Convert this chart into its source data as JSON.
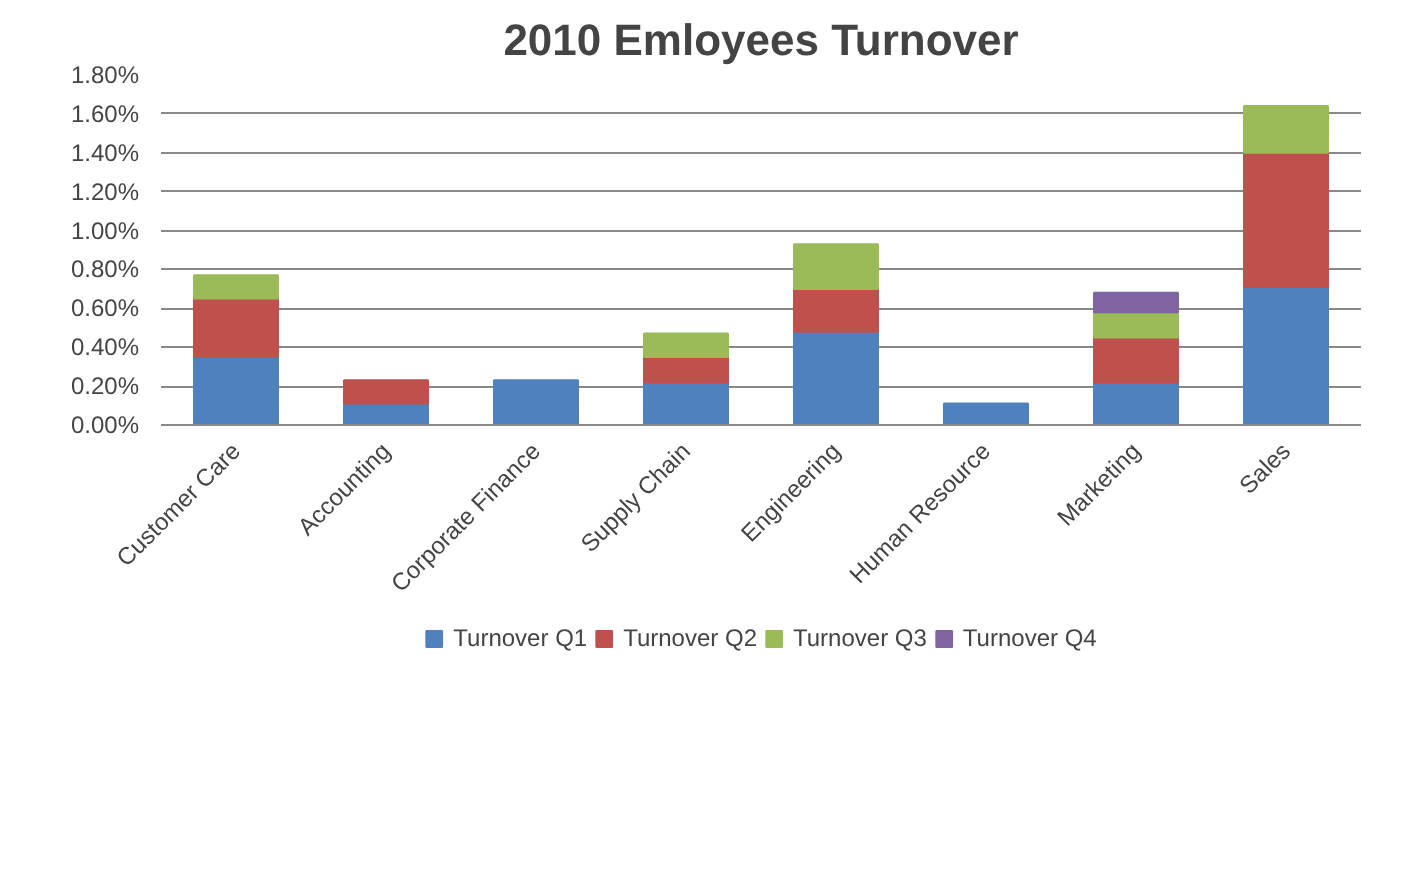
{
  "chart_data": {
    "type": "bar",
    "title": "2010 Emloyees Turnover",
    "stacked": true,
    "categories": [
      "Customer Care",
      "Accounting",
      "Corporate Finance",
      "Supply Chain",
      "Engineering",
      "Human Resource",
      "Marketing",
      "Sales"
    ],
    "series": [
      {
        "name": "Turnover Q1",
        "color": "#4f81bd",
        "values": [
          0.35,
          0.11,
          0.23,
          0.22,
          0.48,
          0.11,
          0.22,
          0.71
        ]
      },
      {
        "name": "Turnover Q2",
        "color": "#c0504d",
        "values": [
          0.3,
          0.12,
          null,
          0.13,
          0.22,
          null,
          0.23,
          0.69
        ]
      },
      {
        "name": "Turnover Q3",
        "color": "#9bbb59",
        "values": [
          0.12,
          null,
          null,
          0.12,
          0.23,
          null,
          0.13,
          0.24
        ]
      },
      {
        "name": "Turnover Q4",
        "color": "#8064a2",
        "values": [
          null,
          null,
          null,
          null,
          null,
          null,
          0.1,
          null
        ]
      }
    ],
    "ylim": [
      0,
      1.8
    ],
    "yticks": [
      {
        "value": 0,
        "label": "0.00%"
      },
      {
        "value": 0.2,
        "label": "0.20%"
      },
      {
        "value": 0.4,
        "label": "0.40%"
      },
      {
        "value": 0.6,
        "label": "0.60%"
      },
      {
        "value": 0.8,
        "label": "0.80%"
      },
      {
        "value": 1.0,
        "label": "1.00%"
      },
      {
        "value": 1.2,
        "label": "1.20%"
      },
      {
        "value": 1.4,
        "label": "1.40%"
      },
      {
        "value": 1.6,
        "label": "1.60%"
      },
      {
        "value": 1.8,
        "label": "1.80%"
      }
    ],
    "grid": "y",
    "legend": "bottom"
  }
}
